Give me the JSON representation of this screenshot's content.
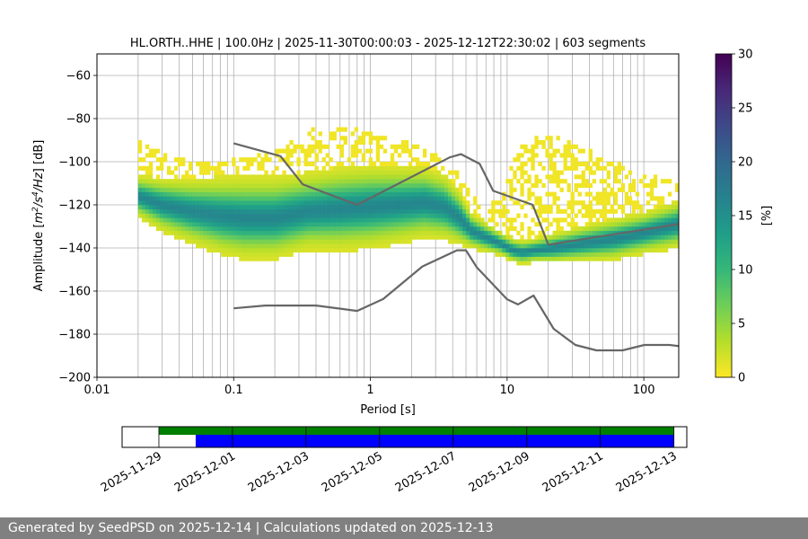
{
  "chart_data": [
    {
      "type": "heatmap",
      "title": "HL.ORTH..HHE | 100.0Hz | 2025-11-30T00:00:03 - 2025-12-12T22:30:02 | 603 segments",
      "xlabel": "Period [s]",
      "ylabel_parts": [
        "Amplitude [",
        "m",
        "2",
        "/",
        "s",
        "4",
        "/",
        "Hz",
        "] [dB]"
      ],
      "xscale": "log",
      "xlim": [
        0.01,
        180
      ],
      "ylim": [
        -200,
        -50
      ],
      "x_ticks": [
        {
          "value": 0.01,
          "label": "0.01"
        },
        {
          "value": 0.1,
          "label": "0.1"
        },
        {
          "value": 1,
          "label": "1"
        },
        {
          "value": 10,
          "label": "10"
        },
        {
          "value": 100,
          "label": "100"
        }
      ],
      "y_ticks": [
        {
          "value": -60,
          "label": "−60"
        },
        {
          "value": -80,
          "label": "−80"
        },
        {
          "value": -100,
          "label": "−100"
        },
        {
          "value": -120,
          "label": "−120"
        },
        {
          "value": -140,
          "label": "−140"
        },
        {
          "value": -160,
          "label": "−160"
        },
        {
          "value": -180,
          "label": "−180"
        },
        {
          "value": -200,
          "label": "−200"
        }
      ],
      "grid": true,
      "psd_band": {
        "period": [
          0.02,
          0.03,
          0.05,
          0.08,
          0.12,
          0.2,
          0.35,
          0.6,
          1.0,
          1.6,
          2.5,
          3.5,
          4.5,
          5.5,
          7.0,
          9.0,
          11.0,
          13.0,
          16.0,
          22.0,
          35.0,
          60.0,
          100.0,
          180.0
        ],
        "mode_db": [
          -116,
          -120,
          -123,
          -125,
          -126,
          -126,
          -123,
          -122,
          -121,
          -120,
          -119,
          -121,
          -126,
          -132,
          -135,
          -138,
          -141,
          -142,
          -141,
          -140,
          -138,
          -136,
          -133,
          -129
        ],
        "spread_db": [
          7,
          9,
          11,
          13,
          14,
          14,
          13,
          14,
          14,
          13,
          12,
          11,
          9,
          6,
          5,
          4,
          4,
          4,
          4,
          5,
          6,
          7,
          7,
          8
        ],
        "outlier_max_db": [
          -90,
          -96,
          -100,
          -100,
          -98,
          -95,
          -85,
          -83,
          -86,
          -90,
          -93,
          -100,
          -106,
          -115,
          -120,
          -115,
          -100,
          -92,
          -88,
          -88,
          -93,
          -100,
          -105,
          -110
        ]
      },
      "series": [
        {
          "name": "NHNM",
          "color": "#666666",
          "period": [
            0.1,
            0.22,
            0.32,
            0.8,
            3.8,
            4.6,
            6.3,
            7.9,
            15.4,
            20.0,
            354.8
          ],
          "values": [
            -91.5,
            -97.4,
            -110.5,
            -120.0,
            -98.0,
            -96.5,
            -101.0,
            -113.5,
            -120.0,
            -138.5,
            -126.0
          ]
        },
        {
          "name": "NLNM",
          "color": "#666666",
          "period": [
            0.1,
            0.17,
            0.4,
            0.8,
            1.24,
            2.4,
            4.3,
            5.0,
            6.0,
            10.0,
            12.0,
            15.6,
            21.9,
            31.6,
            45.0,
            70.0,
            101.0,
            154.0,
            328.0
          ],
          "values": [
            -168.0,
            -166.7,
            -166.7,
            -169.2,
            -163.7,
            -148.6,
            -141.1,
            -141.1,
            -149.0,
            -163.8,
            -166.2,
            -162.1,
            -177.5,
            -185.0,
            -187.5,
            -187.5,
            -185.0,
            -185.0,
            -187.5
          ]
        }
      ],
      "colorbar": {
        "label": "[%]",
        "range": [
          0,
          30
        ],
        "ticks": [
          0,
          5,
          10,
          15,
          20,
          25,
          30
        ],
        "colormap": [
          "#fde725",
          "#b5de2b",
          "#6ece58",
          "#35b779",
          "#1f9e89",
          "#26828e",
          "#31688e",
          "#3e4989",
          "#482878",
          "#440154"
        ]
      }
    },
    {
      "type": "timeline",
      "x_ticks": [
        "2025-11-29",
        "2025-12-01",
        "2025-12-03",
        "2025-12-05",
        "2025-12-07",
        "2025-12-09",
        "2025-12-11",
        "2025-12-13"
      ],
      "bars": [
        {
          "name": "data-availability",
          "color": "#008000",
          "start": "2025-11-29",
          "end": "2025-12-13"
        },
        {
          "name": "psd-coverage",
          "color": "#0000ff",
          "start": "2025-11-30",
          "end": "2025-12-13"
        }
      ]
    }
  ],
  "footer": {
    "text": "Generated by SeedPSD on 2025-12-14 | Calculations updated on 2025-12-13"
  }
}
